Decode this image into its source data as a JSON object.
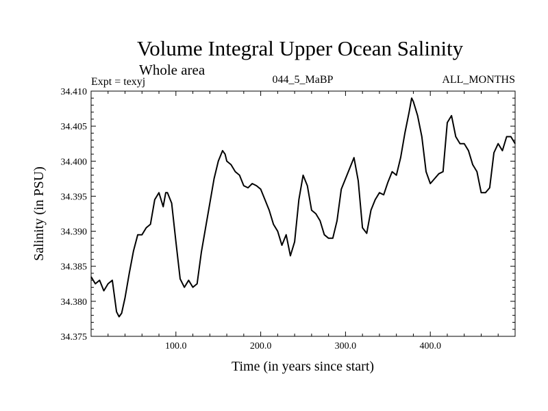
{
  "chart_data": {
    "type": "line",
    "title": "Volume Integral Upper Ocean Salinity",
    "subtitle": "Whole area",
    "annotations": {
      "left": "Expt = texyj",
      "center": "044_5_MaBP",
      "right": "ALL_MONTHS"
    },
    "xlabel": "Time (in years since start)",
    "ylabel": "Salinity (in PSU)",
    "xlim": [
      0,
      500
    ],
    "ylim": [
      34.375,
      34.41
    ],
    "xticks": [
      100,
      200,
      300,
      400
    ],
    "xtick_labels": [
      "100.0",
      "200.0",
      "300.0",
      "400.0"
    ],
    "yticks": [
      34.375,
      34.38,
      34.385,
      34.39,
      34.395,
      34.4,
      34.405,
      34.41
    ],
    "ytick_labels": [
      "34.375",
      "34.380",
      "34.385",
      "34.390",
      "34.395",
      "34.400",
      "34.405",
      "34.410"
    ],
    "grid": false,
    "line_color": "#000000",
    "series": [
      {
        "x": [
          0,
          5,
          10,
          15,
          20,
          25,
          30,
          33,
          36,
          40,
          45,
          50,
          55,
          60,
          65,
          70,
          75,
          80,
          85,
          88,
          90,
          95,
          100,
          105,
          110,
          115,
          120,
          125,
          130,
          135,
          140,
          145,
          150,
          155,
          158,
          160,
          165,
          170,
          175,
          180,
          185,
          190,
          195,
          200,
          205,
          210,
          215,
          220,
          225,
          230,
          235,
          240,
          245,
          250,
          255,
          260,
          265,
          270,
          275,
          280,
          285,
          290,
          295,
          300,
          305,
          310,
          315,
          320,
          325,
          330,
          335,
          340,
          345,
          350,
          355,
          360,
          365,
          370,
          375,
          378,
          380,
          385,
          390,
          395,
          400,
          405,
          410,
          415,
          420,
          425,
          430,
          435,
          440,
          445,
          450,
          455,
          460,
          465,
          470,
          475,
          480,
          485,
          490,
          495,
          500
        ],
        "y": [
          34.3835,
          34.3825,
          34.383,
          34.3815,
          34.3825,
          34.383,
          34.3785,
          34.3778,
          34.3783,
          34.3805,
          34.384,
          34.3872,
          34.3895,
          34.3895,
          34.3905,
          34.391,
          34.3945,
          34.3955,
          34.3935,
          34.3955,
          34.3955,
          34.394,
          34.3885,
          34.3832,
          34.382,
          34.383,
          34.382,
          34.3825,
          34.387,
          34.3905,
          34.394,
          34.3975,
          34.4,
          34.4015,
          34.401,
          34.4,
          34.3995,
          34.3985,
          34.398,
          34.3965,
          34.3962,
          34.3968,
          34.3965,
          34.396,
          34.3945,
          34.393,
          34.391,
          34.39,
          34.388,
          34.3895,
          34.3865,
          34.3885,
          34.3945,
          34.398,
          34.3965,
          34.393,
          34.3925,
          34.3915,
          34.3895,
          34.389,
          34.389,
          34.3915,
          34.396,
          34.3975,
          34.399,
          34.4005,
          34.3972,
          34.3905,
          34.3897,
          34.393,
          34.3945,
          34.3955,
          34.3952,
          34.397,
          34.3985,
          34.398,
          34.4005,
          34.404,
          34.407,
          34.409,
          34.4085,
          34.4065,
          34.4035,
          34.3985,
          34.3968,
          34.3975,
          34.3982,
          34.3985,
          34.4055,
          34.4065,
          34.4035,
          34.4025,
          34.4025,
          34.4015,
          34.3995,
          34.3985,
          34.3955,
          34.3955,
          34.3962,
          34.4012,
          34.4025,
          34.4015,
          34.4035,
          34.4035,
          34.4025
        ]
      }
    ]
  }
}
